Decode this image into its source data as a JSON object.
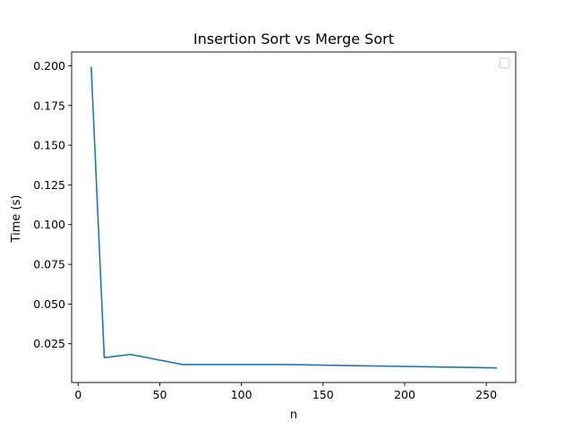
{
  "chart_data": {
    "type": "line",
    "title": "Insertion Sort vs Merge Sort",
    "xlabel": "n",
    "ylabel": "Time (s)",
    "xlim": [
      -4,
      268
    ],
    "ylim": [
      0.0006,
      0.2087
    ],
    "xticks": [
      0,
      50,
      100,
      150,
      200,
      250
    ],
    "xtick_labels": [
      "0",
      "50",
      "100",
      "150",
      "200",
      "250"
    ],
    "yticks": [
      0.025,
      0.05,
      0.075,
      0.1,
      0.125,
      0.15,
      0.175,
      0.2
    ],
    "ytick_labels": [
      "0.025",
      "0.050",
      "0.075",
      "0.100",
      "0.125",
      "0.150",
      "0.175",
      "0.200"
    ],
    "grid": false,
    "legend_placement": "top-right",
    "series": [
      {
        "color": "#1f77b4",
        "x": [
          8,
          16,
          32,
          64,
          128,
          256
        ],
        "y": [
          0.199,
          0.0162,
          0.0183,
          0.0119,
          0.0119,
          0.0098
        ]
      }
    ]
  }
}
